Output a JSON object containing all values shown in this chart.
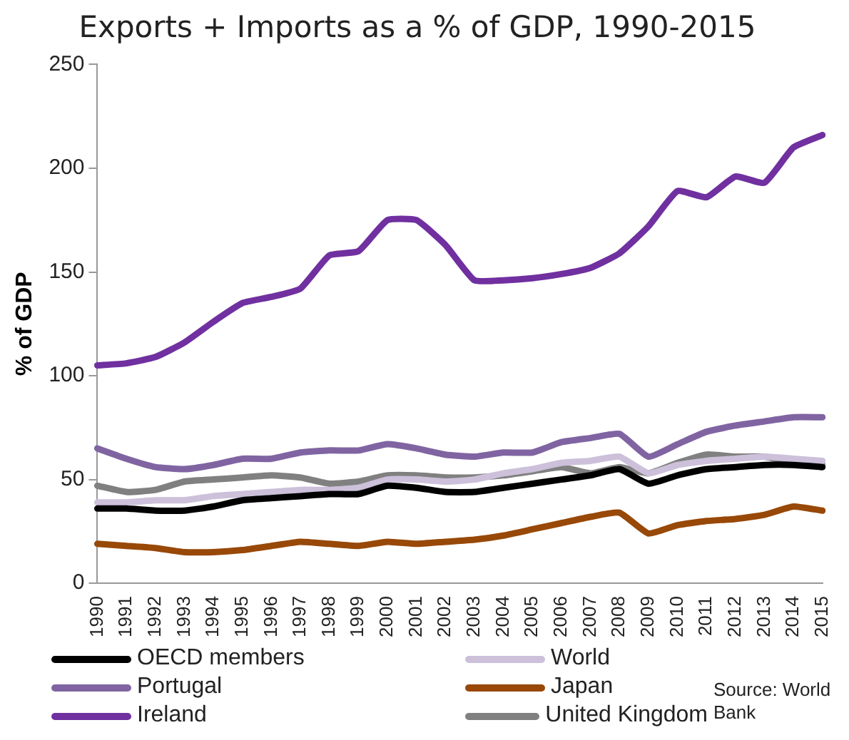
{
  "chart_data": {
    "type": "line",
    "title": "Exports + Imports as a % of GDP, 1990-2015",
    "ylabel": "% of GDP",
    "categories": [
      "1990",
      "1991",
      "1992",
      "1993",
      "1994",
      "1995",
      "1996",
      "1997",
      "1998",
      "1999",
      "2000",
      "2001",
      "2002",
      "2003",
      "2004",
      "2005",
      "2006",
      "2007",
      "2008",
      "2009",
      "2010",
      "2011",
      "2012",
      "2013",
      "2014",
      "2015"
    ],
    "ylim": [
      0,
      250
    ],
    "yticks": [
      0,
      50,
      100,
      150,
      200,
      250
    ],
    "grid": false,
    "legend": "bottom",
    "marker": "none",
    "line_style": "solid",
    "annotations": [
      "Source: World Bank"
    ],
    "series": [
      {
        "name": "OECD members",
        "color": "#000000",
        "values": [
          36,
          36,
          35,
          35,
          37,
          40,
          41,
          42,
          43,
          43,
          47,
          46,
          44,
          44,
          46,
          48,
          50,
          52,
          55,
          48,
          52,
          55,
          56,
          57,
          57,
          56
        ]
      },
      {
        "name": "World",
        "color": "#ccc0da",
        "values": [
          39,
          39,
          40,
          40,
          42,
          43,
          44,
          45,
          45,
          46,
          50,
          50,
          49,
          50,
          53,
          55,
          58,
          59,
          61,
          53,
          57,
          59,
          60,
          61,
          60,
          59
        ]
      },
      {
        "name": "Portugal",
        "color": "#8064a2",
        "values": [
          65,
          60,
          56,
          55,
          57,
          60,
          60,
          63,
          64,
          64,
          67,
          65,
          62,
          61,
          63,
          63,
          68,
          70,
          72,
          61,
          67,
          73,
          76,
          78,
          80,
          80
        ]
      },
      {
        "name": "Japan",
        "color": "#984807",
        "values": [
          19,
          18,
          17,
          15,
          15,
          16,
          18,
          20,
          19,
          18,
          20,
          19,
          20,
          21,
          23,
          26,
          29,
          32,
          34,
          24,
          28,
          30,
          31,
          33,
          37,
          35
        ]
      },
      {
        "name": "Ireland",
        "color": "#7030a0",
        "values": [
          105,
          106,
          109,
          116,
          126,
          135,
          138,
          142,
          158,
          160,
          175,
          175,
          163,
          146,
          146,
          147,
          149,
          152,
          159,
          172,
          189,
          186,
          196,
          193,
          210,
          216
        ]
      },
      {
        "name": "United Kingdom",
        "color": "#808080",
        "values": [
          47,
          44,
          45,
          49,
          50,
          51,
          52,
          51,
          48,
          49,
          52,
          52,
          51,
          51,
          52,
          54,
          56,
          53,
          56,
          53,
          58,
          62,
          61,
          61,
          58,
          57
        ]
      }
    ]
  }
}
